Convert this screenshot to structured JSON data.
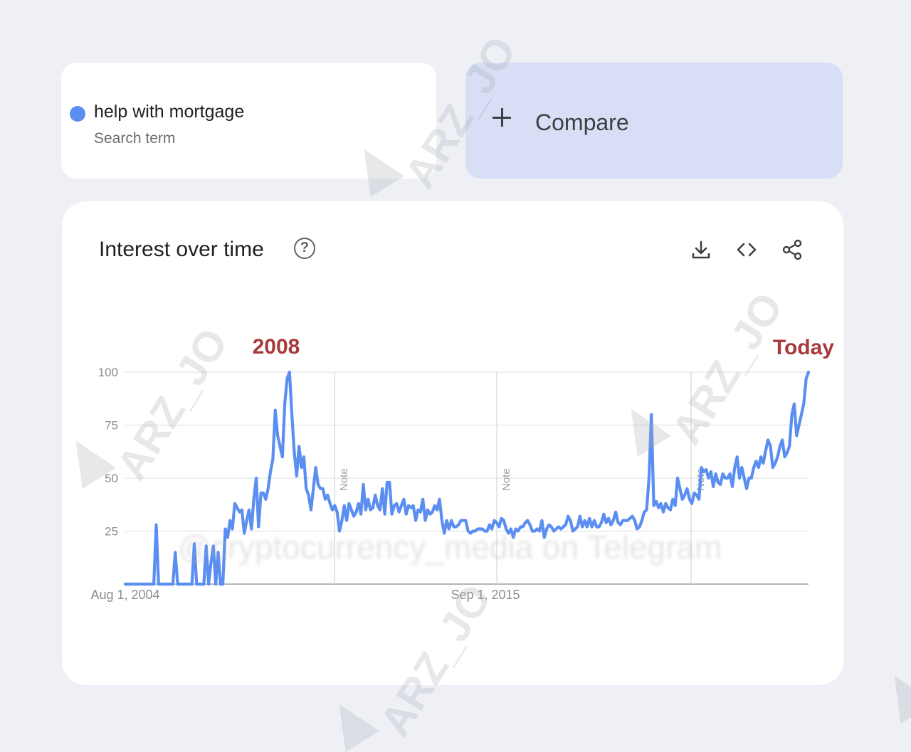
{
  "search_term": {
    "label": "help with mortgage",
    "sub": "Search term",
    "color": "#5b8ef1"
  },
  "compare": {
    "label": "Compare",
    "icon": "plus-icon"
  },
  "chart_card": {
    "title": "Interest over time",
    "icons": [
      "help-icon",
      "download-icon",
      "embed-code-icon",
      "share-icon"
    ],
    "help_glyph": "?"
  },
  "annotations": {
    "peak": "2008",
    "end": "Today",
    "color": "#a83a3a"
  },
  "watermark": {
    "text": "ARZ_JO",
    "blurred": "@cryptocurrency_media on Telegram"
  },
  "chart_data": {
    "type": "line",
    "x_range": [
      "Aug 1, 2004",
      "Today"
    ],
    "x_tick_labels": [
      "Aug 1, 2004",
      "Sep 1, 2015"
    ],
    "y_ticks": [
      25,
      50,
      75,
      100
    ],
    "ylim": [
      0,
      100
    ],
    "note_markers": [
      "Note",
      "Note",
      "Note"
    ],
    "series": [
      {
        "color": "#5b8ef1",
        "values": [
          0,
          0,
          0,
          0,
          0,
          0,
          0,
          0,
          0,
          0,
          0,
          0,
          0,
          28,
          0,
          0,
          0,
          0,
          0,
          0,
          0,
          15,
          0,
          0,
          0,
          0,
          0,
          0,
          0,
          19,
          0,
          0,
          0,
          0,
          18,
          0,
          10,
          18,
          0,
          15,
          0,
          0,
          26,
          22,
          30,
          26,
          38,
          36,
          34,
          35,
          24,
          30,
          35,
          26,
          40,
          50,
          27,
          43,
          43,
          40,
          45,
          53,
          59,
          82,
          70,
          65,
          60,
          85,
          97,
          100,
          80,
          62,
          51,
          65,
          55,
          60,
          45,
          42,
          35,
          45,
          55,
          47,
          45,
          45,
          40,
          42,
          38,
          35,
          37,
          34,
          25,
          30,
          37,
          30,
          38,
          35,
          32,
          34,
          38,
          33,
          47,
          35,
          40,
          35,
          36,
          42,
          37,
          35,
          45,
          33,
          48,
          48,
          33,
          37,
          38,
          34,
          37,
          40,
          33,
          37,
          36,
          37,
          30,
          35,
          34,
          40,
          30,
          35,
          33,
          34,
          37,
          35,
          40,
          30,
          24,
          30,
          26,
          30,
          27,
          27,
          28,
          30,
          30,
          30,
          25,
          24,
          25,
          25,
          26,
          26,
          26,
          25,
          25,
          28,
          26,
          30,
          29,
          27,
          31,
          30,
          26,
          24,
          26,
          22,
          26,
          25,
          27,
          27,
          29,
          30,
          28,
          25,
          25,
          26,
          25,
          30,
          22,
          26,
          28,
          27,
          25,
          26,
          27,
          26,
          27,
          28,
          32,
          30,
          25,
          26,
          27,
          32,
          27,
          30,
          27,
          31,
          27,
          30,
          27,
          27,
          29,
          33,
          29,
          31,
          28,
          30,
          34,
          29,
          28,
          30,
          30,
          30,
          31,
          32,
          30,
          26,
          27,
          30,
          34,
          35,
          50,
          80,
          37,
          39,
          36,
          38,
          34,
          38,
          36,
          35,
          40,
          37,
          50,
          45,
          40,
          42,
          45,
          40,
          38,
          43,
          42,
          40,
          55,
          53,
          54,
          50,
          53,
          46,
          52,
          48,
          47,
          52,
          50,
          50,
          52,
          46,
          55,
          60,
          50,
          55,
          50,
          45,
          50,
          50,
          55,
          58,
          55,
          60,
          57,
          63,
          68,
          65,
          55,
          57,
          60,
          65,
          68,
          60,
          62,
          65,
          80,
          85,
          70,
          75,
          80,
          85,
          97,
          100
        ]
      }
    ]
  }
}
